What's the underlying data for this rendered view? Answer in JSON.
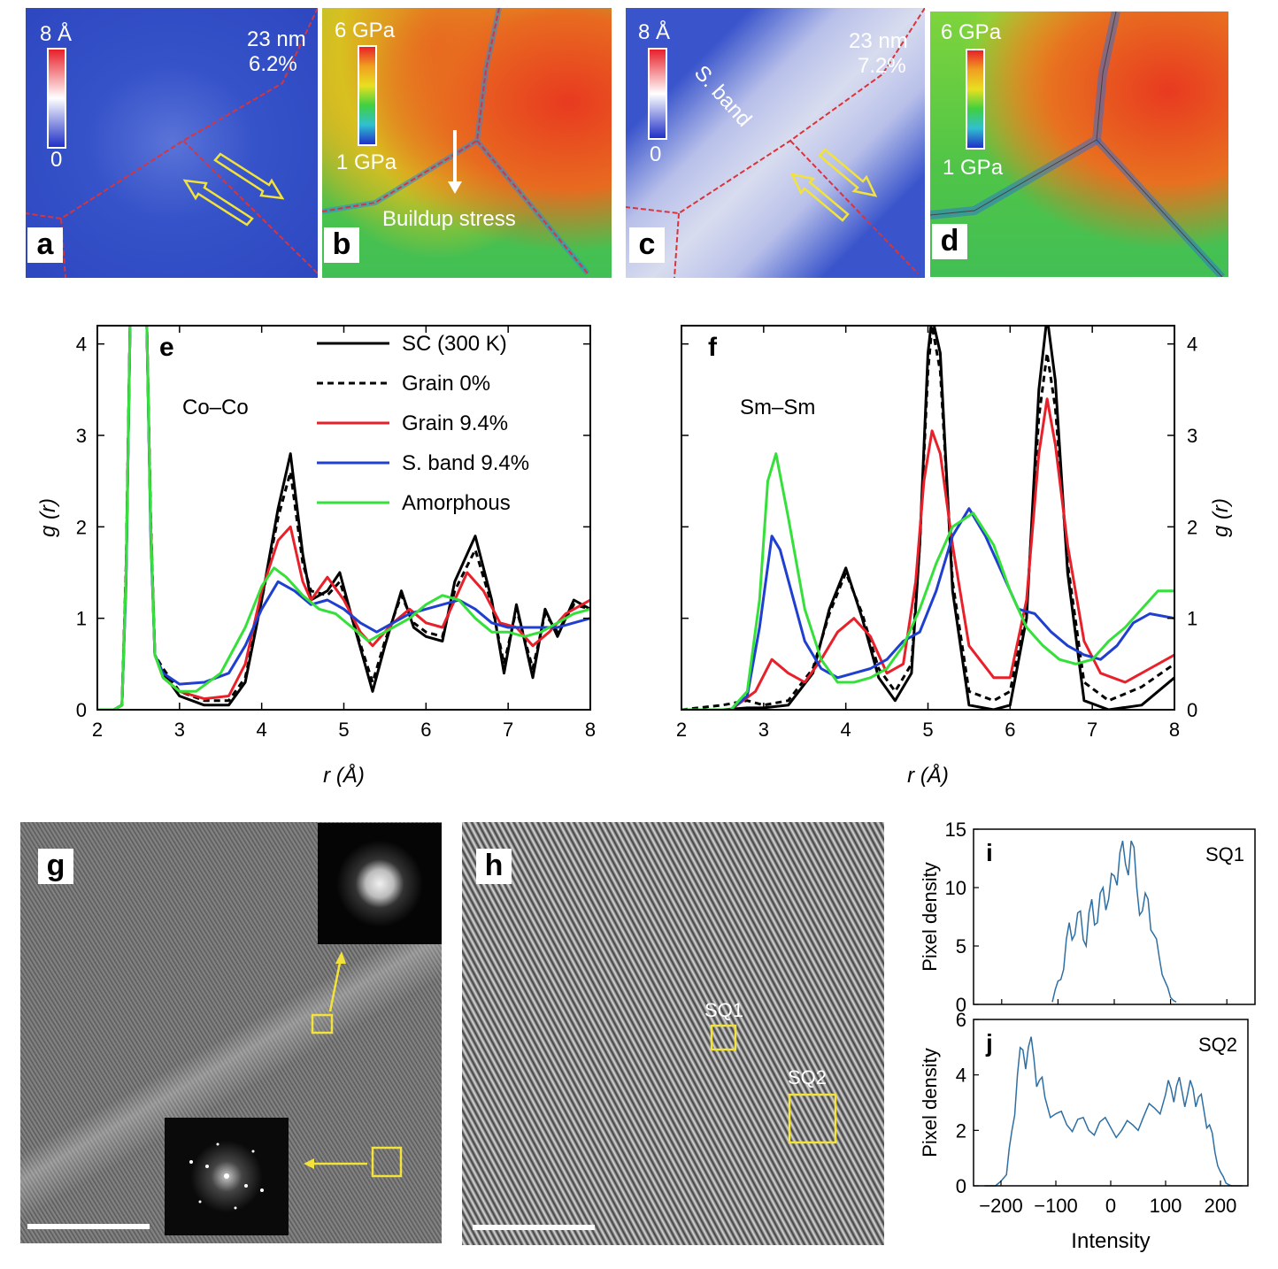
{
  "panels": {
    "a": {
      "letter": "a",
      "scale_top": "8 Å",
      "scale_bottom": "0",
      "size": "23 nm",
      "strain": "6.2%"
    },
    "b": {
      "letter": "b",
      "scale_top": "6 GPa",
      "scale_bottom": "1 GPa",
      "annotation": "Buildup stress"
    },
    "c": {
      "letter": "c",
      "scale_top": "8 Å",
      "scale_bottom": "0",
      "size": "23 nm",
      "strain": "7.2%",
      "band_label": "S. band"
    },
    "d": {
      "letter": "d",
      "scale_top": "6 GPa",
      "scale_bottom": "1 GPa"
    },
    "g": {
      "letter": "g"
    },
    "h": {
      "letter": "h",
      "box1": "SQ1",
      "box2": "SQ2"
    }
  },
  "colors": {
    "sc": "#000000",
    "grain0": "#000000",
    "grain94": "#e8202a",
    "sband": "#1f3fd0",
    "amorph": "#36e03a",
    "hist": "#2e6fa3",
    "map_blue": "#2f4fd0",
    "yellow": "#f2e23a",
    "boundary": "#d9343c"
  },
  "chart_data": [
    {
      "panel": "e",
      "type": "line",
      "title": "Co–Co",
      "letter": "e",
      "xlabel": "r (Å)",
      "ylabel": "g (r)",
      "xlim": [
        2,
        8
      ],
      "ylim": [
        0,
        4.2
      ],
      "xticks": [
        "2",
        "3",
        "4",
        "5",
        "6",
        "7",
        "8"
      ],
      "yticks": [
        "0",
        "1",
        "2",
        "3",
        "4"
      ],
      "legend": [
        "SC (300 K)",
        "Grain 0%",
        "Grain 9.4%",
        "S. band 9.4%",
        "Amorphous"
      ],
      "series": [
        {
          "name": "SC (300 K)",
          "style": "solid",
          "color": "#000000",
          "x": [
            2,
            2.2,
            2.3,
            2.35,
            2.4,
            2.5,
            2.6,
            2.65,
            2.7,
            2.8,
            3.0,
            3.3,
            3.6,
            3.8,
            4.0,
            4.2,
            4.35,
            4.5,
            4.6,
            4.8,
            4.95,
            5.1,
            5.35,
            5.5,
            5.7,
            5.85,
            6.0,
            6.2,
            6.35,
            6.6,
            6.8,
            6.95,
            7.1,
            7.3,
            7.45,
            7.6,
            7.8,
            8.0
          ],
          "y": [
            0,
            0,
            0.05,
            1.5,
            4.3,
            4.3,
            4.3,
            2.0,
            0.6,
            0.4,
            0.15,
            0.05,
            0.05,
            0.3,
            1.2,
            2.2,
            2.8,
            1.7,
            1.2,
            1.3,
            1.5,
            1.0,
            0.2,
            0.7,
            1.3,
            0.9,
            0.8,
            0.75,
            1.4,
            1.9,
            1.2,
            0.4,
            1.15,
            0.35,
            1.1,
            0.8,
            1.2,
            1.1
          ]
        },
        {
          "name": "Grain 0%",
          "style": "dashed",
          "color": "#000000",
          "x": [
            2,
            2.2,
            2.3,
            2.35,
            2.4,
            2.5,
            2.6,
            2.65,
            2.7,
            2.8,
            3.0,
            3.3,
            3.6,
            3.8,
            4.0,
            4.2,
            4.35,
            4.5,
            4.6,
            4.8,
            4.95,
            5.1,
            5.35,
            5.5,
            5.7,
            5.85,
            6.0,
            6.2,
            6.35,
            6.6,
            6.8,
            6.95,
            7.1,
            7.3,
            7.45,
            7.6,
            7.8,
            8.0
          ],
          "y": [
            0,
            0,
            0.05,
            1.6,
            4.3,
            4.3,
            4.3,
            2.1,
            0.6,
            0.45,
            0.2,
            0.1,
            0.1,
            0.35,
            1.2,
            2.1,
            2.6,
            1.6,
            1.3,
            1.25,
            1.4,
            1.0,
            0.3,
            0.75,
            1.25,
            0.95,
            0.85,
            0.8,
            1.3,
            1.75,
            1.15,
            0.5,
            1.1,
            0.45,
            1.05,
            0.85,
            1.15,
            1.1
          ]
        },
        {
          "name": "Grain 9.4%",
          "style": "solid",
          "color": "#e8202a",
          "x": [
            2,
            2.2,
            2.3,
            2.35,
            2.4,
            2.5,
            2.6,
            2.65,
            2.7,
            2.8,
            3.0,
            3.3,
            3.6,
            3.8,
            4.0,
            4.2,
            4.35,
            4.5,
            4.6,
            4.8,
            5.0,
            5.2,
            5.35,
            5.6,
            5.8,
            6.0,
            6.2,
            6.5,
            6.7,
            6.9,
            7.1,
            7.3,
            7.5,
            7.7,
            7.9,
            8.0
          ],
          "y": [
            0,
            0,
            0.05,
            1.5,
            4.3,
            4.3,
            4.3,
            2.0,
            0.6,
            0.35,
            0.2,
            0.12,
            0.15,
            0.5,
            1.3,
            1.85,
            2.0,
            1.4,
            1.2,
            1.45,
            1.2,
            0.85,
            0.7,
            0.95,
            1.1,
            0.95,
            0.9,
            1.5,
            1.3,
            0.95,
            0.9,
            0.7,
            0.85,
            1.05,
            1.15,
            1.2
          ]
        },
        {
          "name": "S. band 9.4%",
          "style": "solid",
          "color": "#1f3fd0",
          "x": [
            2,
            2.2,
            2.3,
            2.35,
            2.4,
            2.5,
            2.6,
            2.65,
            2.7,
            2.8,
            3.0,
            3.3,
            3.6,
            3.8,
            4.0,
            4.2,
            4.4,
            4.6,
            4.8,
            5.0,
            5.2,
            5.4,
            5.6,
            5.8,
            6.0,
            6.2,
            6.4,
            6.6,
            6.8,
            7.0,
            7.2,
            7.4,
            7.6,
            7.8,
            8.0
          ],
          "y": [
            0,
            0,
            0.05,
            1.4,
            4.3,
            4.3,
            4.3,
            1.9,
            0.6,
            0.4,
            0.28,
            0.3,
            0.4,
            0.7,
            1.1,
            1.4,
            1.3,
            1.15,
            1.2,
            1.1,
            0.95,
            0.85,
            0.95,
            1.05,
            1.1,
            1.15,
            1.2,
            1.1,
            0.95,
            0.9,
            0.9,
            0.9,
            0.9,
            0.95,
            1.0
          ]
        },
        {
          "name": "Amorphous",
          "style": "solid",
          "color": "#36e03a",
          "x": [
            2,
            2.2,
            2.3,
            2.35,
            2.4,
            2.5,
            2.6,
            2.65,
            2.7,
            2.8,
            3.0,
            3.2,
            3.5,
            3.8,
            4.0,
            4.15,
            4.3,
            4.5,
            4.7,
            4.9,
            5.1,
            5.3,
            5.5,
            5.8,
            6.0,
            6.2,
            6.4,
            6.6,
            6.8,
            7.0,
            7.2,
            7.4,
            7.6,
            7.8,
            8.0
          ],
          "y": [
            0,
            0,
            0.05,
            1.5,
            4.3,
            4.3,
            4.3,
            2.0,
            0.6,
            0.35,
            0.2,
            0.2,
            0.4,
            0.9,
            1.35,
            1.55,
            1.45,
            1.25,
            1.1,
            1.05,
            0.9,
            0.75,
            0.85,
            1.0,
            1.15,
            1.25,
            1.2,
            1.0,
            0.85,
            0.85,
            0.8,
            0.85,
            0.95,
            1.05,
            1.1
          ]
        }
      ]
    },
    {
      "panel": "f",
      "type": "line",
      "title": "Sm–Sm",
      "letter": "f",
      "xlabel": "r (Å)",
      "ylabel": "g (r)",
      "xlim": [
        2,
        8
      ],
      "ylim": [
        0,
        4.2
      ],
      "xticks": [
        "2",
        "3",
        "4",
        "5",
        "6",
        "7",
        "8"
      ],
      "yticks": [
        "0",
        "1",
        "2",
        "3",
        "4"
      ],
      "series": [
        {
          "name": "SC (300 K)",
          "style": "solid",
          "color": "#000000",
          "x": [
            2,
            2.5,
            2.8,
            3.0,
            3.3,
            3.6,
            3.8,
            4.0,
            4.2,
            4.4,
            4.6,
            4.8,
            4.9,
            5.0,
            5.05,
            5.15,
            5.3,
            5.5,
            5.8,
            6.0,
            6.2,
            6.35,
            6.45,
            6.55,
            6.7,
            6.9,
            7.2,
            7.6,
            8.0
          ],
          "y": [
            0,
            0,
            0.02,
            0.02,
            0.05,
            0.4,
            1.1,
            1.55,
            1.0,
            0.35,
            0.1,
            0.4,
            1.8,
            3.9,
            4.3,
            3.9,
            1.3,
            0.05,
            0.0,
            0.05,
            1.0,
            3.5,
            4.3,
            3.6,
            1.5,
            0.1,
            0.0,
            0.05,
            0.35
          ]
        },
        {
          "name": "Grain 0%",
          "style": "dashed",
          "color": "#000000",
          "x": [
            2,
            2.5,
            2.8,
            3.0,
            3.3,
            3.6,
            3.8,
            4.0,
            4.2,
            4.4,
            4.6,
            4.8,
            4.9,
            5.0,
            5.05,
            5.15,
            5.3,
            5.5,
            5.8,
            6.0,
            6.2,
            6.35,
            6.45,
            6.55,
            6.7,
            6.9,
            7.2,
            7.6,
            8.0
          ],
          "y": [
            0,
            0.05,
            0.1,
            0.05,
            0.1,
            0.45,
            1.05,
            1.5,
            1.05,
            0.45,
            0.2,
            0.5,
            1.8,
            3.7,
            4.2,
            3.7,
            1.4,
            0.2,
            0.1,
            0.2,
            1.1,
            3.2,
            3.9,
            3.3,
            1.6,
            0.3,
            0.1,
            0.25,
            0.5
          ]
        },
        {
          "name": "Grain 9.4%",
          "style": "solid",
          "color": "#e8202a",
          "x": [
            2,
            2.6,
            2.9,
            3.1,
            3.3,
            3.5,
            3.7,
            3.9,
            4.1,
            4.3,
            4.5,
            4.7,
            4.85,
            4.95,
            5.05,
            5.15,
            5.3,
            5.5,
            5.8,
            6.0,
            6.2,
            6.35,
            6.45,
            6.55,
            6.7,
            6.9,
            7.1,
            7.4,
            7.7,
            8.0
          ],
          "y": [
            0,
            0,
            0.2,
            0.55,
            0.4,
            0.3,
            0.55,
            0.85,
            1.0,
            0.8,
            0.4,
            0.5,
            1.4,
            2.5,
            3.05,
            2.8,
            1.8,
            0.7,
            0.35,
            0.35,
            1.2,
            2.8,
            3.4,
            2.9,
            1.8,
            0.75,
            0.4,
            0.3,
            0.45,
            0.6
          ]
        },
        {
          "name": "S. band 9.4%",
          "style": "solid",
          "color": "#1f3fd0",
          "x": [
            2,
            2.6,
            2.8,
            2.95,
            3.1,
            3.2,
            3.35,
            3.5,
            3.7,
            3.9,
            4.1,
            4.3,
            4.5,
            4.7,
            4.9,
            5.1,
            5.3,
            5.5,
            5.7,
            5.9,
            6.1,
            6.3,
            6.5,
            6.7,
            6.9,
            7.1,
            7.3,
            7.5,
            7.7,
            8.0
          ],
          "y": [
            0,
            0,
            0.15,
            0.9,
            1.9,
            1.75,
            1.25,
            0.75,
            0.45,
            0.35,
            0.4,
            0.45,
            0.55,
            0.75,
            0.85,
            1.3,
            1.9,
            2.2,
            1.9,
            1.5,
            1.1,
            1.05,
            0.85,
            0.7,
            0.6,
            0.55,
            0.7,
            0.95,
            1.05,
            1.0
          ]
        },
        {
          "name": "Amorphous",
          "style": "solid",
          "color": "#36e03a",
          "x": [
            2,
            2.6,
            2.8,
            2.95,
            3.05,
            3.15,
            3.3,
            3.5,
            3.7,
            3.9,
            4.1,
            4.3,
            4.5,
            4.7,
            4.9,
            5.1,
            5.3,
            5.55,
            5.8,
            6.0,
            6.2,
            6.4,
            6.6,
            6.8,
            7.0,
            7.2,
            7.4,
            7.6,
            7.8,
            8.0
          ],
          "y": [
            0,
            0,
            0.2,
            1.2,
            2.5,
            2.8,
            2.1,
            1.1,
            0.55,
            0.3,
            0.3,
            0.35,
            0.45,
            0.7,
            1.1,
            1.6,
            2.0,
            2.15,
            1.8,
            1.3,
            0.9,
            0.7,
            0.55,
            0.5,
            0.55,
            0.75,
            0.9,
            1.1,
            1.3,
            1.3
          ]
        }
      ]
    },
    {
      "panel": "i",
      "type": "histogram",
      "label": "SQ1",
      "letter": "i",
      "ylabel": "Pixel density",
      "xlim": [
        -250,
        250
      ],
      "ylim": [
        0,
        15
      ],
      "yticks": [
        "0",
        "5",
        "10",
        "15"
      ],
      "x": [
        -110,
        -100,
        -90,
        -80,
        -70,
        -60,
        -50,
        -40,
        -30,
        -20,
        -10,
        0,
        10,
        20,
        30,
        40,
        50,
        60,
        70,
        80,
        90,
        100,
        110
      ],
      "y": [
        0.2,
        2,
        3,
        7,
        6,
        8,
        5,
        9,
        7,
        10,
        9,
        11,
        13,
        12,
        14,
        10,
        8,
        9,
        6,
        4,
        2,
        0.6,
        0.2
      ]
    },
    {
      "panel": "j",
      "type": "histogram",
      "label": "SQ2",
      "letter": "j",
      "xlabel": "Intensity",
      "ylabel": "Pixel density",
      "xlim": [
        -250,
        250
      ],
      "ylim": [
        0,
        6
      ],
      "xticks": [
        "−200",
        "−100",
        "0",
        "100",
        "200"
      ],
      "yticks": [
        "0",
        "2",
        "4",
        "6"
      ],
      "x": [
        -230,
        -210,
        -190,
        -180,
        -170,
        -160,
        -150,
        -140,
        -130,
        -120,
        -100,
        -80,
        -60,
        -40,
        -20,
        0,
        20,
        40,
        60,
        80,
        100,
        110,
        120,
        130,
        140,
        150,
        160,
        170,
        180,
        190,
        200,
        210,
        220,
        240
      ],
      "y": [
        0,
        0,
        0.4,
        2.0,
        4.0,
        4.9,
        5.0,
        4.6,
        3.8,
        3.2,
        2.6,
        2.2,
        2.4,
        2.0,
        2.3,
        2.1,
        2.0,
        2.2,
        2.5,
        2.8,
        3.3,
        3.5,
        3.6,
        3.4,
        3.3,
        3.5,
        3.2,
        2.7,
        2.2,
        1.2,
        0.5,
        0.1,
        0,
        0
      ]
    }
  ]
}
